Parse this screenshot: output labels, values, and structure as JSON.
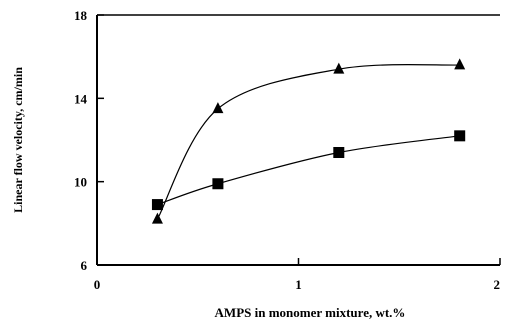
{
  "chart_data": {
    "type": "scatter",
    "title": "",
    "xlabel": "AMPS in monomer mixture, wt.%",
    "ylabel": "Linear flow velocity, cm/min",
    "xlim": [
      0,
      2
    ],
    "ylim": [
      6,
      18
    ],
    "x_ticks": [
      "0",
      "1",
      "2"
    ],
    "y_ticks": [
      "6",
      "10",
      "14",
      "18"
    ],
    "x_tick_values": [
      0,
      1,
      2
    ],
    "y_tick_values": [
      6,
      10,
      14,
      18
    ],
    "grid": false,
    "series": [
      {
        "marker": "triangle",
        "color": "#000000",
        "x": [
          0.3,
          0.6,
          1.2,
          1.8
        ],
        "y": [
          8.2,
          13.5,
          15.4,
          15.6
        ]
      },
      {
        "marker": "square",
        "color": "#000000",
        "x": [
          0.3,
          0.6,
          1.2,
          1.8
        ],
        "y": [
          8.9,
          9.9,
          11.4,
          12.2
        ]
      }
    ]
  }
}
